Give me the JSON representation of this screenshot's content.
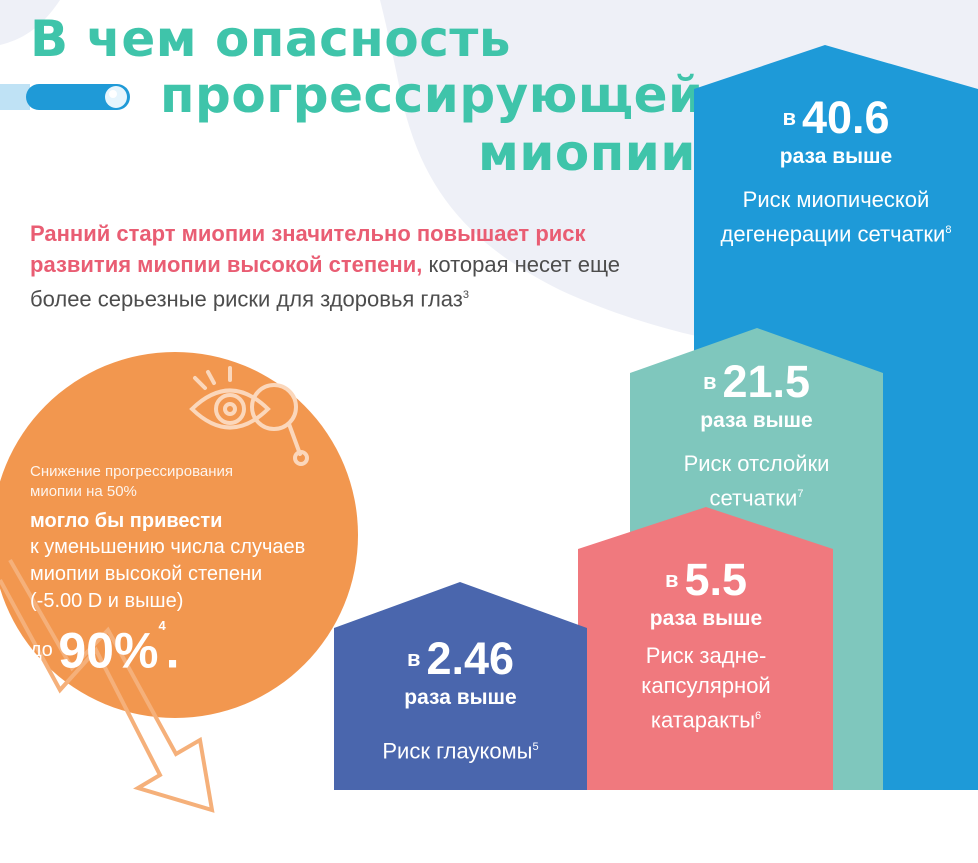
{
  "title": {
    "line1": "В чем опасность",
    "line2": "прогрессирующей",
    "line3": "миопии"
  },
  "intro": {
    "bold_part": "Ранний старт миопии значительно повышает риск развития миопии высокой степени,",
    "regular_part": " которая несет еще более серьезные риски для здоровья глаз",
    "ref": "3"
  },
  "circle": {
    "line1": "Снижение прогрессирования миопии на 50%",
    "line2": "могло бы привести",
    "line3": "к уменьшению числа случаев миопии высокой степени (-5.00 D и выше)",
    "prefix": "до",
    "value": "90%",
    "ref": "4",
    "dot": "."
  },
  "bars": [
    {
      "prefix": "в",
      "value": "40.6",
      "times": "раза выше",
      "desc": "Риск миопической дегенерации сетчатки",
      "ref": "8",
      "color": "#1e9ad8"
    },
    {
      "prefix": "в",
      "value": "21.5",
      "times": "раза выше",
      "desc": "Риск отслойки сетчатки",
      "ref": "7",
      "color": "#7fc7bd"
    },
    {
      "prefix": "в",
      "value": "5.5",
      "times": "раза выше",
      "desc": "Риск задне-капсулярной катаракты",
      "ref": "6",
      "color": "#f0797e"
    },
    {
      "prefix": "в",
      "value": "2.46",
      "times": "раза выше",
      "desc": "Риск глаукомы",
      "ref": "5",
      "color": "#4a66ad"
    }
  ],
  "icons": {
    "eye": "eye-magnifier-icon",
    "arrow": "down-arrow-icon",
    "pill": "capsule-decoration"
  }
}
